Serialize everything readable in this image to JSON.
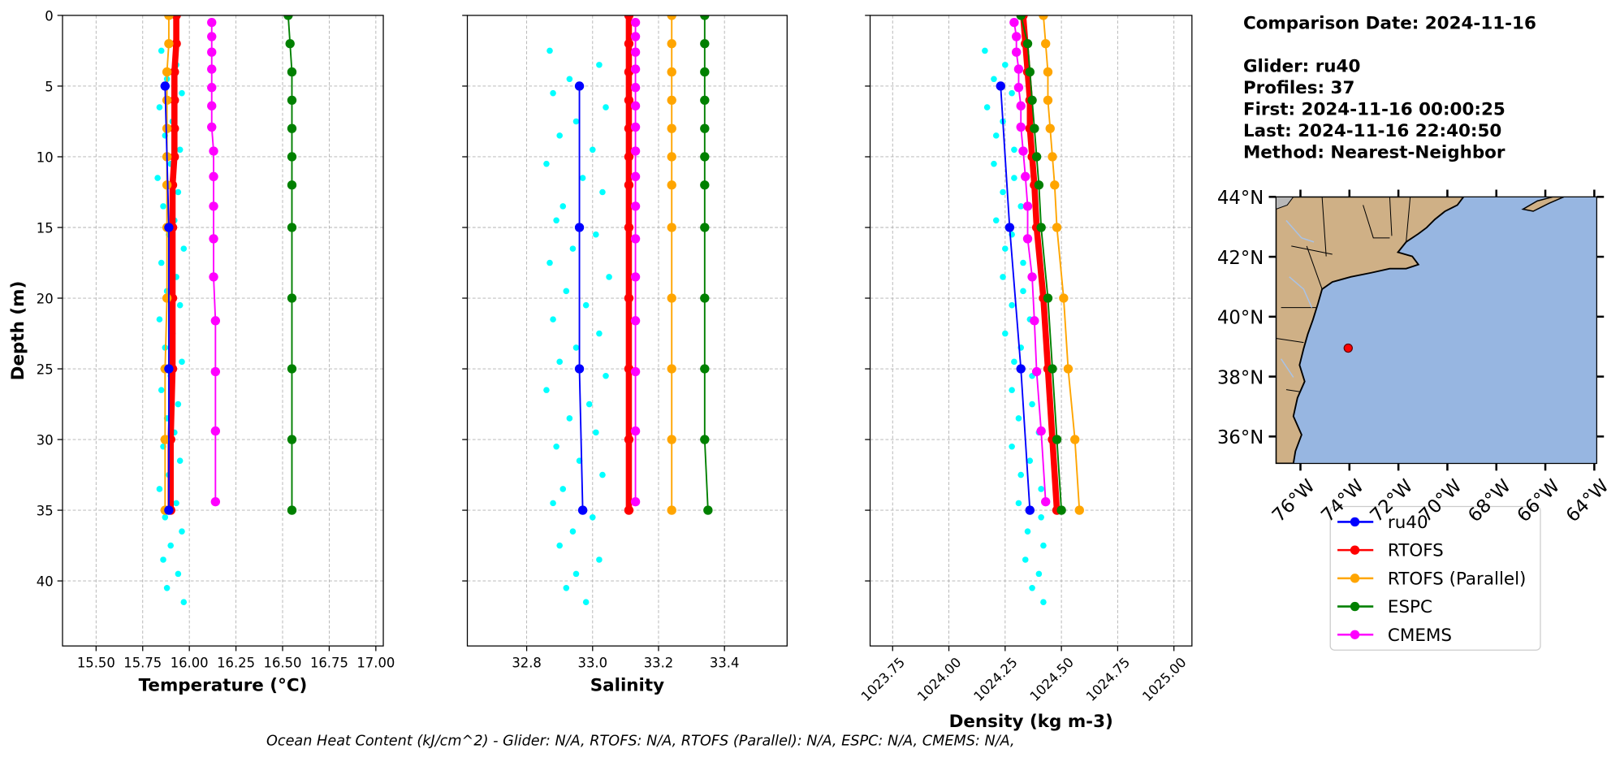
{
  "chart_data": [
    {
      "type": "line",
      "xlabel": "Temperature (°C)",
      "ylabel": "Depth (m)",
      "xlim": [
        15.32,
        17.04
      ],
      "ylim": [
        0,
        44.6
      ],
      "invert_y": true,
      "grid": true,
      "ytick_labels": true,
      "xticks": [
        {
          "value": 15.5,
          "label": "15.50"
        },
        15.75,
        {
          "value": 16,
          "label": "16.00"
        },
        16.25,
        {
          "value": 16.5,
          "label": "16.50"
        },
        16.75,
        {
          "value": 17,
          "label": "17.00"
        }
      ],
      "yticks": [
        0,
        5,
        10,
        15,
        20,
        25,
        30,
        35,
        40
      ],
      "scatter": {
        "color": "#00ffff",
        "depth": [
          2.5,
          3.5,
          4.5,
          5.5,
          6.5,
          7.5,
          8.5,
          9.5,
          10.5,
          11.5,
          12.5,
          13.5,
          14.5,
          15.5,
          16.5,
          17.5,
          18.5,
          19.5,
          20.5,
          21.5,
          22.5,
          23.5,
          24.5,
          25.5,
          26.5,
          27.5,
          28.5,
          29.5,
          30.5,
          31.5,
          32.5,
          33.5,
          34.5,
          35.5,
          36.5,
          37.5,
          38.5,
          39.5,
          40.5,
          41.5
        ],
        "values": [
          15.85,
          15.93,
          15.88,
          15.96,
          15.84,
          15.91,
          15.87,
          15.95,
          15.9,
          15.83,
          15.94,
          15.86,
          15.92,
          15.89,
          15.97,
          15.85,
          15.93,
          15.88,
          15.95,
          15.84,
          15.91,
          15.87,
          15.96,
          15.9,
          15.85,
          15.94,
          15.88,
          15.92,
          15.86,
          15.95,
          15.89,
          15.84,
          15.93,
          15.87,
          15.96,
          15.9,
          15.86,
          15.94,
          15.88,
          15.97
        ]
      },
      "series": [
        {
          "name": "ru40",
          "color": "blue",
          "linewidth": 1.5,
          "depth": [
            5,
            15,
            25,
            35
          ],
          "values": [
            15.87,
            15.89,
            15.89,
            15.89
          ]
        },
        {
          "name": "RTOFS",
          "color": "red",
          "linewidth": 6,
          "depth": [
            0,
            2,
            4,
            6,
            8,
            10,
            12,
            15,
            20,
            25,
            30,
            35
          ],
          "values": [
            15.93,
            15.93,
            15.92,
            15.92,
            15.92,
            15.92,
            15.91,
            15.91,
            15.91,
            15.91,
            15.9,
            15.9
          ]
        },
        {
          "name": "RTOFS (Parallel)",
          "color": "orange",
          "linewidth": 1.5,
          "depth": [
            0,
            2,
            4,
            6,
            8,
            10,
            12,
            15,
            20,
            25,
            30,
            35
          ],
          "values": [
            15.89,
            15.89,
            15.88,
            15.88,
            15.88,
            15.88,
            15.88,
            15.88,
            15.88,
            15.87,
            15.87,
            15.87
          ]
        },
        {
          "name": "ESPC",
          "color": "green",
          "linewidth": 1.5,
          "depth": [
            0,
            2,
            4,
            6,
            8,
            10,
            12,
            15,
            20,
            25,
            30,
            35
          ],
          "values": [
            16.53,
            16.54,
            16.55,
            16.55,
            16.55,
            16.55,
            16.55,
            16.55,
            16.55,
            16.55,
            16.55,
            16.55
          ]
        },
        {
          "name": "CMEMS",
          "color": "magenta",
          "linewidth": 1.5,
          "depth": [
            0.5,
            1.5,
            2.6,
            3.8,
            5.1,
            6.4,
            7.9,
            9.6,
            11.4,
            13.5,
            15.8,
            18.5,
            21.6,
            25.2,
            29.4,
            34.4
          ],
          "values": [
            16.12,
            16.12,
            16.12,
            16.12,
            16.12,
            16.12,
            16.12,
            16.13,
            16.13,
            16.13,
            16.13,
            16.13,
            16.14,
            16.14,
            16.14,
            16.14
          ]
        }
      ]
    },
    {
      "type": "line",
      "xlabel": "Salinity",
      "xlim": [
        32.62,
        33.59
      ],
      "ylim": [
        0,
        44.6
      ],
      "invert_y": true,
      "grid": true,
      "ytick_labels": false,
      "xticks": [
        32.8,
        {
          "value": 33,
          "label": "33.0"
        },
        33.2,
        33.4
      ],
      "yticks": [
        0,
        5,
        10,
        15,
        20,
        25,
        30,
        35,
        40
      ],
      "scatter": {
        "color": "#00ffff",
        "depth": [
          2.5,
          3.5,
          4.5,
          5.5,
          6.5,
          7.5,
          8.5,
          9.5,
          10.5,
          11.5,
          12.5,
          13.5,
          14.5,
          15.5,
          16.5,
          17.5,
          18.5,
          19.5,
          20.5,
          21.5,
          22.5,
          23.5,
          24.5,
          25.5,
          26.5,
          27.5,
          28.5,
          29.5,
          30.5,
          31.5,
          32.5,
          33.5,
          34.5,
          35.5,
          36.5,
          37.5,
          38.5,
          39.5,
          40.5,
          41.5
        ],
        "values": [
          32.87,
          33.02,
          32.93,
          32.88,
          33.04,
          32.95,
          32.9,
          33.0,
          32.86,
          32.97,
          33.03,
          32.91,
          32.89,
          33.01,
          32.94,
          32.87,
          33.05,
          32.92,
          32.98,
          32.88,
          33.02,
          32.95,
          32.9,
          33.04,
          32.86,
          32.99,
          32.93,
          33.01,
          32.89,
          32.96,
          33.03,
          32.91,
          32.88,
          33.0,
          32.94,
          32.9,
          33.02,
          32.95,
          32.92,
          32.98
        ]
      },
      "series": [
        {
          "name": "ru40",
          "color": "blue",
          "linewidth": 1.5,
          "depth": [
            5,
            15,
            25,
            35
          ],
          "values": [
            32.96,
            32.96,
            32.96,
            32.97
          ]
        },
        {
          "name": "RTOFS",
          "color": "red",
          "linewidth": 6,
          "depth": [
            0,
            2,
            4,
            6,
            8,
            10,
            12,
            15,
            20,
            25,
            30,
            35
          ],
          "values": [
            33.11,
            33.11,
            33.11,
            33.11,
            33.11,
            33.11,
            33.11,
            33.11,
            33.11,
            33.11,
            33.11,
            33.11
          ]
        },
        {
          "name": "RTOFS (Parallel)",
          "color": "orange",
          "linewidth": 1.5,
          "depth": [
            0,
            2,
            4,
            6,
            8,
            10,
            12,
            15,
            20,
            25,
            30,
            35
          ],
          "values": [
            33.24,
            33.24,
            33.24,
            33.24,
            33.24,
            33.24,
            33.24,
            33.24,
            33.24,
            33.24,
            33.24,
            33.24
          ]
        },
        {
          "name": "ESPC",
          "color": "green",
          "linewidth": 1.5,
          "depth": [
            0,
            2,
            4,
            6,
            8,
            10,
            12,
            15,
            20,
            25,
            30,
            35
          ],
          "values": [
            33.34,
            33.34,
            33.34,
            33.34,
            33.34,
            33.34,
            33.34,
            33.34,
            33.34,
            33.34,
            33.34,
            33.35
          ]
        },
        {
          "name": "CMEMS",
          "color": "magenta",
          "linewidth": 1.5,
          "depth": [
            0.5,
            1.5,
            2.6,
            3.8,
            5.1,
            6.4,
            7.9,
            9.6,
            11.4,
            13.5,
            15.8,
            18.5,
            21.6,
            25.2,
            29.4,
            34.4
          ],
          "values": [
            33.13,
            33.13,
            33.13,
            33.13,
            33.13,
            33.13,
            33.13,
            33.13,
            33.13,
            33.13,
            33.13,
            33.13,
            33.13,
            33.13,
            33.13,
            33.13
          ]
        }
      ]
    },
    {
      "type": "line",
      "xlabel": "Density (kg m-3)",
      "xlim": [
        1023.65,
        1025.08
      ],
      "ylim": [
        0,
        44.6
      ],
      "invert_y": true,
      "grid": true,
      "ytick_labels": false,
      "xtick_rotation": 45,
      "xticks": [
        1023.75,
        {
          "value": 1024,
          "label": "1024.00"
        },
        1024.25,
        {
          "value": 1024.5,
          "label": "1024.50"
        },
        1024.75,
        {
          "value": 1025,
          "label": "1025.00"
        }
      ],
      "yticks": [
        0,
        5,
        10,
        15,
        20,
        25,
        30,
        35,
        40
      ],
      "scatter": {
        "color": "#00ffff",
        "depth": [
          2.5,
          3.5,
          4.5,
          5.5,
          6.5,
          7.5,
          8.5,
          9.5,
          10.5,
          11.5,
          12.5,
          13.5,
          14.5,
          15.5,
          16.5,
          17.5,
          18.5,
          19.5,
          20.5,
          21.5,
          22.5,
          23.5,
          24.5,
          25.5,
          26.5,
          27.5,
          28.5,
          29.5,
          30.5,
          31.5,
          32.5,
          33.5,
          34.5,
          35.5,
          36.5,
          37.5,
          38.5,
          39.5,
          40.5,
          41.5
        ],
        "values": [
          1024.16,
          1024.25,
          1024.2,
          1024.28,
          1024.17,
          1024.24,
          1024.21,
          1024.29,
          1024.2,
          1024.29,
          1024.24,
          1024.32,
          1024.21,
          1024.28,
          1024.25,
          1024.33,
          1024.24,
          1024.33,
          1024.28,
          1024.36,
          1024.25,
          1024.32,
          1024.29,
          1024.37,
          1024.28,
          1024.37,
          1024.31,
          1024.4,
          1024.28,
          1024.36,
          1024.32,
          1024.41,
          1024.31,
          1024.41,
          1024.35,
          1024.42,
          1024.34,
          1024.4,
          1024.37,
          1024.42
        ]
      },
      "series": [
        {
          "name": "ru40",
          "color": "blue",
          "linewidth": 1.5,
          "depth": [
            5,
            15,
            25,
            35
          ],
          "values": [
            1024.23,
            1024.27,
            1024.32,
            1024.36
          ]
        },
        {
          "name": "RTOFS",
          "color": "red",
          "linewidth": 6,
          "depth": [
            0,
            2,
            4,
            6,
            8,
            10,
            12,
            15,
            20,
            25,
            30,
            35
          ],
          "values": [
            1024.33,
            1024.34,
            1024.35,
            1024.36,
            1024.36,
            1024.37,
            1024.38,
            1024.39,
            1024.42,
            1024.44,
            1024.46,
            1024.48
          ]
        },
        {
          "name": "RTOFS (Parallel)",
          "color": "orange",
          "linewidth": 1.5,
          "depth": [
            0,
            2,
            4,
            6,
            8,
            10,
            12,
            15,
            20,
            25,
            30,
            35
          ],
          "values": [
            1024.42,
            1024.43,
            1024.44,
            1024.44,
            1024.45,
            1024.46,
            1024.47,
            1024.48,
            1024.51,
            1024.53,
            1024.56,
            1024.58
          ]
        },
        {
          "name": "ESPC",
          "color": "green",
          "linewidth": 1.5,
          "depth": [
            0,
            2,
            4,
            6,
            8,
            10,
            12,
            15,
            20,
            25,
            30,
            35
          ],
          "values": [
            1024.32,
            1024.35,
            1024.36,
            1024.37,
            1024.38,
            1024.39,
            1024.4,
            1024.41,
            1024.44,
            1024.46,
            1024.48,
            1024.5
          ]
        },
        {
          "name": "CMEMS",
          "color": "magenta",
          "linewidth": 1.5,
          "depth": [
            0.5,
            1.5,
            2.6,
            3.8,
            5.1,
            6.4,
            7.9,
            9.6,
            11.4,
            13.5,
            15.8,
            18.5,
            21.6,
            25.2,
            29.4,
            34.4
          ],
          "values": [
            1024.29,
            1024.3,
            1024.3,
            1024.31,
            1024.31,
            1024.32,
            1024.32,
            1024.33,
            1024.34,
            1024.35,
            1024.35,
            1024.37,
            1024.38,
            1024.39,
            1024.41,
            1024.43
          ]
        }
      ]
    }
  ],
  "info": [
    "Comparison Date: 2024-11-16",
    "Glider: ru40",
    "Profiles: 37",
    "First: 2024-11-16 00:00:25",
    "Last: 2024-11-16 22:40:50",
    "Method: Nearest-Neighbor"
  ],
  "map": {
    "xlim": [
      -77.0,
      -63.9
    ],
    "ylim": [
      35.1,
      44.0
    ],
    "xticks": [
      {
        "value": -76,
        "label": "76°W"
      },
      {
        "value": -74,
        "label": "74°W"
      },
      {
        "value": -72,
        "label": "72°W"
      },
      {
        "value": -70,
        "label": "70°W"
      },
      {
        "value": -68,
        "label": "68°W"
      },
      {
        "value": -66,
        "label": "66°W"
      },
      {
        "value": -64,
        "label": "64°W"
      }
    ],
    "yticks": [
      {
        "value": 36,
        "label": "36°N"
      },
      {
        "value": 38,
        "label": "38°N"
      },
      {
        "value": 40,
        "label": "40°N"
      },
      {
        "value": 42,
        "label": "42°N"
      },
      {
        "value": 44,
        "label": "44°N"
      }
    ],
    "glider": {
      "lon": -74.05,
      "lat": 38.95,
      "color": "red"
    }
  },
  "footer": "Ocean Heat Content (kJ/cm^2) - Glider: N/A,  RTOFS: N/A,  RTOFS (Parallel): N/A,  ESPC: N/A,  CMEMS: N/A,"
}
